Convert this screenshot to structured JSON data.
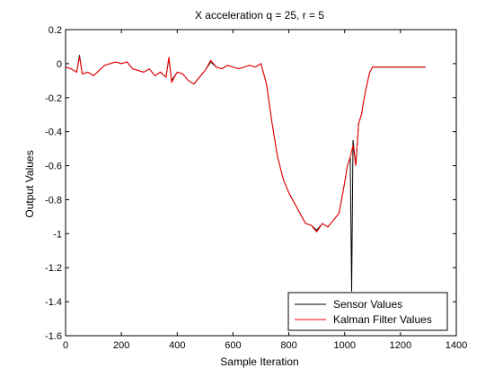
{
  "chart_data": {
    "type": "line",
    "title": "X acceleration q = 25, r = 5",
    "xlabel": "Sample Iteration",
    "ylabel": "Output Values",
    "xlim": [
      0,
      1400
    ],
    "ylim": [
      -1.6,
      0.2
    ],
    "xticks": [
      0,
      200,
      400,
      600,
      800,
      1000,
      1200,
      1400
    ],
    "yticks": [
      -1.6,
      -1.4,
      -1.2,
      -1,
      -0.8,
      -0.6,
      -0.4,
      -0.2,
      0,
      0.2
    ],
    "xtick_labels": [
      "0",
      "200",
      "400",
      "600",
      "800",
      "1000",
      "1200",
      "1400"
    ],
    "ytick_labels": [
      "-1.6",
      "-1.4",
      "-1.2",
      "-1",
      "-0.8",
      "-0.6",
      "-0.4",
      "-0.2",
      "0",
      "0.2"
    ],
    "grid": false,
    "legend_position": "bottom-right",
    "series": [
      {
        "name": "Sensor Values",
        "color": "#000000",
        "x": [
          0,
          20,
          40,
          50,
          60,
          80,
          100,
          120,
          140,
          160,
          180,
          200,
          220,
          240,
          260,
          280,
          300,
          320,
          340,
          360,
          370,
          380,
          400,
          420,
          440,
          460,
          480,
          500,
          520,
          540,
          560,
          580,
          600,
          620,
          640,
          660,
          680,
          700,
          720,
          740,
          760,
          780,
          800,
          820,
          840,
          860,
          880,
          900,
          920,
          940,
          960,
          980,
          1000,
          1010,
          1020,
          1025,
          1030,
          1040,
          1050,
          1060,
          1070,
          1080,
          1090,
          1100,
          1120,
          1160,
          1200,
          1240,
          1280,
          1290
        ],
        "values": [
          -0.02,
          -0.03,
          -0.05,
          0.05,
          -0.06,
          -0.05,
          -0.07,
          -0.04,
          -0.01,
          0.0,
          0.01,
          0.0,
          0.01,
          -0.03,
          -0.04,
          -0.05,
          -0.03,
          -0.07,
          -0.05,
          -0.08,
          0.03,
          -0.1,
          -0.05,
          -0.06,
          -0.1,
          -0.12,
          -0.08,
          -0.04,
          0.01,
          -0.02,
          -0.03,
          -0.01,
          -0.02,
          -0.03,
          -0.02,
          -0.01,
          -0.02,
          0.0,
          -0.12,
          -0.35,
          -0.55,
          -0.68,
          -0.76,
          -0.82,
          -0.88,
          -0.94,
          -0.95,
          -0.98,
          -0.94,
          -0.96,
          -0.92,
          -0.88,
          -0.7,
          -0.6,
          -0.55,
          -1.34,
          -0.45,
          -0.6,
          -0.35,
          -0.3,
          -0.2,
          -0.12,
          -0.05,
          -0.02,
          -0.02,
          -0.02,
          -0.02,
          -0.02,
          -0.02,
          -0.02
        ]
      },
      {
        "name": "Kalman Filter Values",
        "color": "#ff0000",
        "x": [
          0,
          20,
          40,
          50,
          60,
          80,
          100,
          120,
          140,
          160,
          180,
          200,
          220,
          240,
          260,
          280,
          300,
          320,
          340,
          360,
          370,
          380,
          400,
          420,
          440,
          460,
          480,
          500,
          520,
          540,
          560,
          580,
          600,
          620,
          640,
          660,
          680,
          700,
          720,
          740,
          760,
          780,
          800,
          820,
          840,
          860,
          880,
          900,
          920,
          940,
          960,
          980,
          1000,
          1010,
          1020,
          1030,
          1040,
          1050,
          1060,
          1070,
          1080,
          1090,
          1100,
          1120,
          1160,
          1200,
          1240,
          1280,
          1290
        ],
        "values": [
          -0.02,
          -0.03,
          -0.05,
          0.04,
          -0.06,
          -0.05,
          -0.07,
          -0.04,
          -0.01,
          0.0,
          0.01,
          0.0,
          0.01,
          -0.03,
          -0.04,
          -0.05,
          -0.03,
          -0.07,
          -0.05,
          -0.08,
          0.04,
          -0.11,
          -0.05,
          -0.06,
          -0.1,
          -0.12,
          -0.08,
          -0.04,
          0.02,
          -0.02,
          -0.03,
          -0.01,
          -0.02,
          -0.03,
          -0.02,
          -0.01,
          -0.02,
          0.0,
          -0.12,
          -0.35,
          -0.55,
          -0.68,
          -0.76,
          -0.82,
          -0.88,
          -0.94,
          -0.95,
          -0.99,
          -0.94,
          -0.96,
          -0.92,
          -0.88,
          -0.7,
          -0.6,
          -0.55,
          -0.48,
          -0.6,
          -0.35,
          -0.3,
          -0.2,
          -0.12,
          -0.05,
          -0.02,
          -0.02,
          -0.02,
          -0.02,
          -0.02,
          -0.02,
          -0.02
        ]
      }
    ]
  }
}
